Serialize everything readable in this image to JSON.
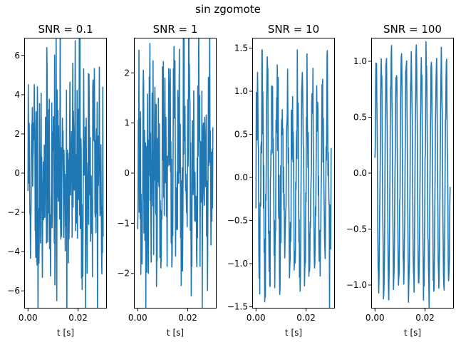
{
  "figure_title": "sin zgomote",
  "chart_data": [
    {
      "type": "line",
      "title": "SNR = 0.1",
      "xlabel": "t [s]",
      "ylabel": "",
      "xlim": [
        -0.0015,
        0.0315
      ],
      "ylim": [
        -6.9,
        6.9
      ],
      "xticks": [
        0.0,
        0.02
      ],
      "xtick_labels": [
        "0.00",
        "0.02"
      ],
      "yticks": [
        -6,
        -4,
        -2,
        0,
        2,
        4,
        6
      ],
      "ytick_labels": [
        "−6",
        "−4",
        "−2",
        "0",
        "2",
        "4",
        "6"
      ],
      "signal": {
        "frequency_hz": 500,
        "amplitude": 1.0,
        "duration_s": 0.03,
        "noise_amplitude": 3.2,
        "seed": 11
      },
      "color": "#1f77b4"
    },
    {
      "type": "line",
      "title": "SNR = 1",
      "xlabel": "t [s]",
      "ylabel": "",
      "xlim": [
        -0.0015,
        0.0315
      ],
      "ylim": [
        -2.7,
        2.7
      ],
      "xticks": [
        0.0,
        0.02
      ],
      "xtick_labels": [
        "0.00",
        "0.02"
      ],
      "yticks": [
        -2,
        -1,
        0,
        1,
        2
      ],
      "ytick_labels": [
        "−2",
        "−1",
        "0",
        "1",
        "2"
      ],
      "signal": {
        "frequency_hz": 500,
        "amplitude": 1.0,
        "duration_s": 0.03,
        "noise_amplitude": 1.0,
        "seed": 23
      },
      "color": "#1f77b4"
    },
    {
      "type": "line",
      "title": "SNR = 10",
      "xlabel": "t [s]",
      "ylabel": "",
      "xlim": [
        -0.0015,
        0.0315
      ],
      "ylim": [
        -1.52,
        1.62
      ],
      "xticks": [
        0.0,
        0.02
      ],
      "xtick_labels": [
        "0.00",
        "0.02"
      ],
      "yticks": [
        -1.5,
        -1.0,
        -0.5,
        0.0,
        0.5,
        1.0,
        1.5
      ],
      "ytick_labels": [
        "−1.5",
        "−1.0",
        "−0.5",
        "0.0",
        "0.5",
        "1.0",
        "1.5"
      ],
      "signal": {
        "frequency_hz": 500,
        "amplitude": 1.0,
        "duration_s": 0.03,
        "noise_amplitude": 0.32,
        "seed": 37
      },
      "color": "#1f77b4"
    },
    {
      "type": "line",
      "title": "SNR = 100",
      "xlabel": "t [s]",
      "ylabel": "",
      "xlim": [
        -0.0015,
        0.0315
      ],
      "ylim": [
        -1.21,
        1.21
      ],
      "xticks": [
        0.0,
        0.02
      ],
      "xtick_labels": [
        "0.00",
        "0.02"
      ],
      "yticks": [
        -1.0,
        -0.5,
        0.0,
        0.5,
        1.0
      ],
      "ytick_labels": [
        "−1.0",
        "−0.5",
        "0.0",
        "0.5",
        "1.0"
      ],
      "signal": {
        "frequency_hz": 500,
        "amplitude": 1.0,
        "duration_s": 0.03,
        "noise_amplitude": 0.1,
        "seed": 53
      },
      "color": "#1f77b4"
    }
  ]
}
